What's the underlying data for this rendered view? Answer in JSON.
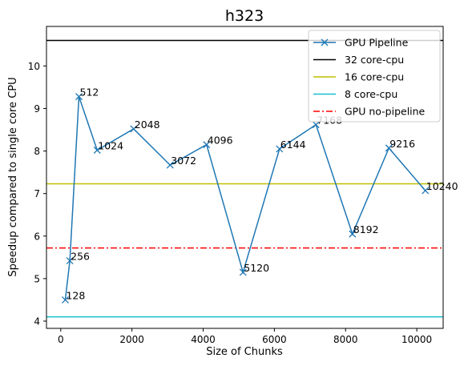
{
  "chart_data": {
    "type": "line",
    "title": "h323",
    "xlabel": "Size of Chunks",
    "ylabel": "Speedup compared to single core CPU",
    "xlim": [
      -400,
      10740
    ],
    "ylim": [
      3.83,
      10.93
    ],
    "x_ticks": [
      0,
      2000,
      4000,
      6000,
      8000,
      10000
    ],
    "x_tick_labels": [
      "0",
      "2000",
      "4000",
      "6000",
      "8000",
      "10000"
    ],
    "y_ticks": [
      4,
      5,
      6,
      7,
      8,
      9,
      10
    ],
    "y_tick_labels": [
      "4",
      "5",
      "6",
      "7",
      "8",
      "9",
      "10"
    ],
    "grid": false,
    "legend_position": "top-right",
    "series": [
      {
        "name": "GPU Pipeline",
        "kind": "line-markers",
        "marker": "x",
        "color": "#1f77b4",
        "x": [
          128,
          256,
          512,
          1024,
          2048,
          3072,
          4096,
          5120,
          6144,
          7168,
          8192,
          9216,
          10240
        ],
        "y": [
          4.5,
          5.42,
          9.28,
          8.02,
          8.52,
          7.67,
          8.15,
          5.15,
          8.05,
          8.62,
          6.05,
          8.07,
          7.07
        ],
        "point_labels": [
          "128",
          "256",
          "512",
          "1024",
          "2048",
          "3072",
          "4096",
          "5120",
          "6144",
          "7168",
          "8192",
          "9216",
          "10240"
        ]
      },
      {
        "name": "32 core-cpu",
        "kind": "hline",
        "y": 10.6,
        "color": "#000000",
        "dash": "solid"
      },
      {
        "name": "16 core-cpu",
        "kind": "hline",
        "y": 7.23,
        "color": "#bfbf00",
        "dash": "solid"
      },
      {
        "name": "8 core-cpu",
        "kind": "hline",
        "y": 4.1,
        "color": "#17becf",
        "dash": "solid"
      },
      {
        "name": "GPU no-pipeline",
        "kind": "hline",
        "y": 5.72,
        "color": "#ff0000",
        "dash": "dashdot"
      }
    ]
  }
}
